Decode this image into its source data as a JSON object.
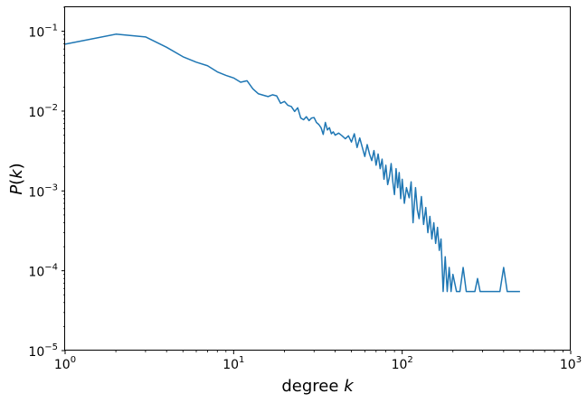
{
  "chart_data": {
    "type": "line",
    "scale": {
      "x": "log",
      "y": "log"
    },
    "xlabel_text": "degree",
    "xlabel_var": "k",
    "ylabel_var": "P",
    "ylabel_arg": "k",
    "xlim": [
      1,
      1000
    ],
    "ylim": [
      1e-05,
      0.2
    ],
    "grid": false,
    "x_ticks": [
      {
        "value": 1,
        "base": "10",
        "exp": "0"
      },
      {
        "value": 10,
        "base": "10",
        "exp": "1"
      },
      {
        "value": 100,
        "base": "10",
        "exp": "2"
      },
      {
        "value": 1000,
        "base": "10",
        "exp": "3"
      }
    ],
    "y_ticks": [
      {
        "value": 1e-05,
        "base": "10",
        "exp": "−5"
      },
      {
        "value": 0.0001,
        "base": "10",
        "exp": "−4"
      },
      {
        "value": 0.001,
        "base": "10",
        "exp": "−3"
      },
      {
        "value": 0.01,
        "base": "10",
        "exp": "−2"
      },
      {
        "value": 0.1,
        "base": "10",
        "exp": "−1"
      }
    ],
    "series": [
      {
        "name": "P(k)",
        "color": "#1f77b4",
        "x": [
          1,
          2,
          3,
          4,
          5,
          6,
          7,
          8,
          9,
          10,
          11,
          12,
          13,
          14,
          15,
          16,
          17,
          18,
          19,
          20,
          21,
          22,
          23,
          24,
          25,
          26,
          27,
          28,
          29,
          30,
          31,
          32,
          33,
          34,
          35,
          36,
          37,
          38,
          39,
          40,
          42,
          44,
          46,
          48,
          50,
          52,
          54,
          56,
          58,
          60,
          62,
          64,
          66,
          68,
          70,
          72,
          74,
          76,
          78,
          80,
          82,
          84,
          86,
          88,
          90,
          92,
          94,
          96,
          98,
          100,
          103,
          106,
          110,
          113,
          116,
          120,
          123,
          126,
          130,
          134,
          138,
          142,
          146,
          150,
          154,
          158,
          162,
          166,
          170,
          175,
          180,
          185,
          190,
          195,
          200,
          210,
          220,
          230,
          240,
          250,
          260,
          270,
          280,
          290,
          300,
          310,
          320,
          330,
          340,
          360,
          380,
          400,
          420,
          440,
          460,
          480,
          500
        ],
        "y": [
          0.069,
          0.092,
          0.085,
          0.063,
          0.048,
          0.041,
          0.037,
          0.031,
          0.028,
          0.026,
          0.023,
          0.024,
          0.019,
          0.0165,
          0.0158,
          0.0152,
          0.016,
          0.0155,
          0.0125,
          0.0132,
          0.0118,
          0.0114,
          0.0099,
          0.011,
          0.0082,
          0.0078,
          0.0085,
          0.0076,
          0.0082,
          0.0083,
          0.0072,
          0.0068,
          0.0062,
          0.0051,
          0.0072,
          0.0058,
          0.0062,
          0.0052,
          0.0055,
          0.005,
          0.0053,
          0.0049,
          0.0045,
          0.0049,
          0.0041,
          0.0052,
          0.0035,
          0.0046,
          0.0035,
          0.0027,
          0.0038,
          0.0029,
          0.0024,
          0.0032,
          0.0021,
          0.0029,
          0.0019,
          0.0025,
          0.0014,
          0.0021,
          0.0012,
          0.0015,
          0.0022,
          0.0013,
          0.0009,
          0.0019,
          0.0011,
          0.0017,
          0.0008,
          0.0014,
          0.0007,
          0.0011,
          0.00082,
          0.0013,
          0.0004,
          0.0011,
          0.00058,
          0.00045,
          0.00085,
          0.00038,
          0.00062,
          0.0003,
          0.00048,
          0.00025,
          0.0004,
          0.00022,
          0.00035,
          0.00018,
          0.00025,
          5.5e-05,
          0.00015,
          5.5e-05,
          0.00011,
          5.5e-05,
          9e-05,
          5.5e-05,
          5.5e-05,
          0.00011,
          5.5e-05,
          5.5e-05,
          5.5e-05,
          5.5e-05,
          8e-05,
          5.5e-05,
          5.5e-05,
          5.5e-05,
          5.5e-05,
          5.5e-05,
          5.5e-05,
          5.5e-05,
          5.5e-05,
          0.00011,
          5.5e-05,
          5.5e-05,
          5.5e-05,
          5.5e-05,
          5.5e-05
        ]
      }
    ]
  }
}
